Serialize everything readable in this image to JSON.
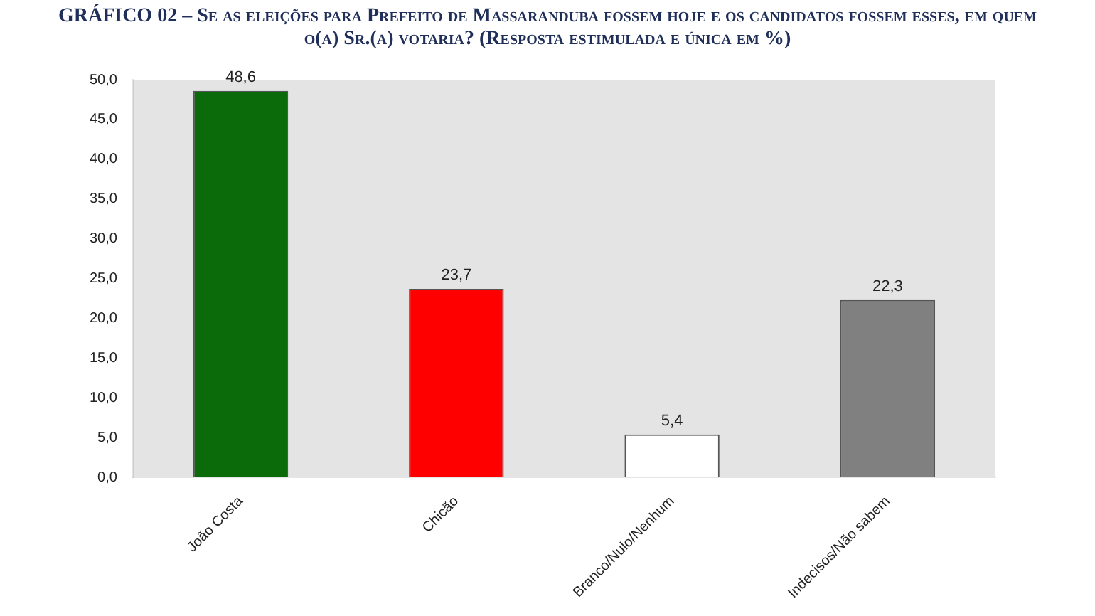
{
  "chart_data": {
    "type": "bar",
    "title": "GRÁFICO 02 – Se as eleições para Prefeito de Massaranduba fossem hoje e os candidatos fossem esses, em quem o(a) Sr.(a) votaria? (Resposta estimulada e única em %)",
    "categories": [
      "João Costa",
      "Chicão",
      "Branco/Nulo/Nenhum",
      "Indecisos/Não sabem"
    ],
    "values": [
      48.6,
      23.7,
      5.4,
      22.3
    ],
    "colors": [
      "#0b6b0b",
      "#ff0000",
      "#ffffff",
      "#808080"
    ],
    "value_labels": [
      "48,6",
      "23,7",
      "5,4",
      "22,3"
    ],
    "ylim": [
      0,
      50
    ],
    "yticks": [
      {
        "value": 0,
        "label": "0,0"
      },
      {
        "value": 5,
        "label": "5,0"
      },
      {
        "value": 10,
        "label": "10,0"
      },
      {
        "value": 15,
        "label": "15,0"
      },
      {
        "value": 20,
        "label": "20,0"
      },
      {
        "value": 25,
        "label": "25,0"
      },
      {
        "value": 30,
        "label": "30,0"
      },
      {
        "value": 35,
        "label": "35,0"
      },
      {
        "value": 40,
        "label": "40,0"
      },
      {
        "value": 45,
        "label": "45,0"
      },
      {
        "value": 50,
        "label": "50,0"
      }
    ],
    "grid": false,
    "legend": false
  }
}
